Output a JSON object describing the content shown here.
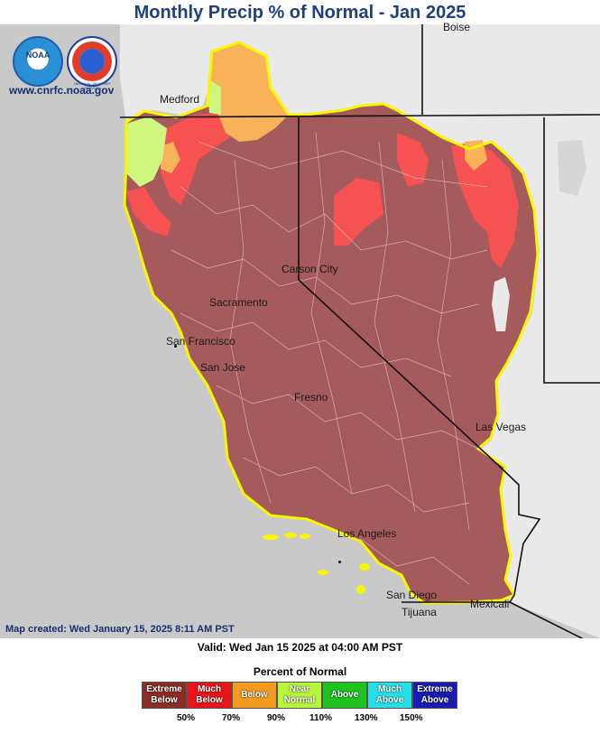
{
  "title": "Monthly Precip % of Normal - Jan 2025",
  "website": "www.cnrfc.noaa.gov",
  "logos": [
    {
      "name": "noaa-logo",
      "text": "NOAA"
    },
    {
      "name": "nws-logo",
      "text": "NATIONAL WEATHER SERVICE"
    }
  ],
  "cities": [
    "Boise",
    "Medford",
    "Carson City",
    "Sacramento",
    "San Francisco",
    "San Jose",
    "Fresno",
    "Las Vegas",
    "Los Angeles",
    "San Diego",
    "Tijuana",
    "Mexicali"
  ],
  "map_created": "Map created: Wed January 15, 2025 8:11 AM PST",
  "valid": "Valid: Wed Jan 15 2025 at 04:00 AM PST",
  "legend": {
    "title": "Percent of Normal",
    "categories": [
      {
        "label1": "Extreme",
        "label2": "Below",
        "color": "#8c2d24"
      },
      {
        "label1": "Much",
        "label2": "Below",
        "color": "#e8141a"
      },
      {
        "label1": "Below",
        "label2": "",
        "color": "#f39a20"
      },
      {
        "label1": "Near",
        "label2": "Normal",
        "color": "#b8f53d"
      },
      {
        "label1": "Above",
        "label2": "",
        "color": "#1fc21f"
      },
      {
        "label1": "Much",
        "label2": "Above",
        "color": "#27e0e7"
      },
      {
        "label1": "Extreme",
        "label2": "Above",
        "color": "#1a1ab4"
      }
    ],
    "ticks": [
      "50%",
      "70%",
      "90%",
      "110%",
      "130%",
      "150%"
    ]
  },
  "map_colors": {
    "extreme_below": "#a55b5c",
    "much_below": "#f75252",
    "below": "#f7b25a",
    "near_normal": "#cff77f",
    "outline": "#f7f700"
  }
}
